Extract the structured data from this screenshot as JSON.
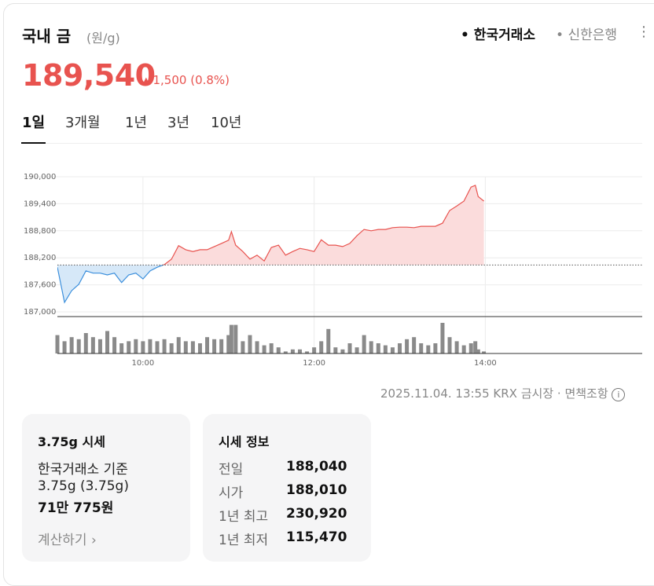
{
  "header": {
    "title": "국내 금",
    "unit": "(원/g)",
    "sources": [
      "한국거래소",
      "신한은행"
    ]
  },
  "price": {
    "value": "189,540",
    "change": "1,500",
    "change_pct": "(0.8%)"
  },
  "tabs": [
    "1일",
    "3개월",
    "1년",
    "3년",
    "10년"
  ],
  "chart_data": {
    "type": "line",
    "x": [
      "09:00",
      "09:05",
      "09:10",
      "09:15",
      "09:20",
      "09:25",
      "09:30",
      "09:35",
      "09:40",
      "09:45",
      "09:50",
      "09:55",
      "10:00",
      "10:05",
      "10:10",
      "10:15",
      "10:20",
      "10:25",
      "10:30",
      "10:35",
      "10:40",
      "10:45",
      "10:50",
      "10:55",
      "11:00",
      "11:02",
      "11:05",
      "11:10",
      "11:15",
      "11:20",
      "11:25",
      "11:30",
      "11:35",
      "11:40",
      "11:45",
      "11:50",
      "11:55",
      "12:00",
      "12:05",
      "12:10",
      "12:15",
      "12:20",
      "12:25",
      "12:30",
      "12:35",
      "12:40",
      "12:45",
      "12:50",
      "12:55",
      "13:00",
      "13:05",
      "13:10",
      "13:15",
      "13:20",
      "13:25",
      "13:30",
      "13:35",
      "13:40",
      "13:45",
      "13:50",
      "13:53",
      "13:55",
      "13:59"
    ],
    "values": [
      187990,
      187210,
      187470,
      187610,
      187910,
      187860,
      187860,
      187820,
      187860,
      187650,
      187820,
      187860,
      187730,
      187910,
      187990,
      188050,
      188170,
      188470,
      188380,
      188340,
      188380,
      188380,
      188450,
      188520,
      188590,
      188780,
      188480,
      188340,
      188170,
      188260,
      188130,
      188430,
      188480,
      188260,
      188340,
      188410,
      188380,
      188340,
      188600,
      188480,
      188480,
      188450,
      188520,
      188690,
      188830,
      188800,
      188830,
      188830,
      188870,
      188880,
      188880,
      188870,
      188900,
      188900,
      188900,
      188970,
      189250,
      189350,
      189460,
      189770,
      189810,
      189560,
      189460
    ],
    "volumes": [
      18,
      12,
      16,
      14,
      20,
      16,
      14,
      22,
      16,
      10,
      12,
      14,
      12,
      14,
      12,
      14,
      10,
      16,
      12,
      12,
      10,
      16,
      14,
      14,
      18,
      28,
      28,
      12,
      18,
      12,
      8,
      10,
      6,
      2,
      4,
      4,
      2,
      6,
      12,
      24,
      6,
      4,
      10,
      6,
      18,
      12,
      10,
      8,
      6,
      10,
      14,
      16,
      10,
      8,
      10,
      30,
      16,
      12,
      8,
      10,
      12,
      4,
      2
    ],
    "baseline": 188040,
    "ylim": [
      187000,
      190000
    ],
    "yticks": [
      {
        "value": 187000,
        "label": "187,000"
      },
      {
        "value": 187600,
        "label": "187,600"
      },
      {
        "value": 188200,
        "label": "188,200"
      },
      {
        "value": 188800,
        "label": "188,800"
      },
      {
        "value": 189400,
        "label": "189,400"
      },
      {
        "value": 190000,
        "label": "190,000"
      }
    ],
    "xlim": [
      "09:00",
      "15:50"
    ],
    "xticks": [
      "10:00",
      "12:00",
      "14:00"
    ],
    "grid": true,
    "up_color": "#e8534f",
    "down_color": "#3b8fdc",
    "volume_color": "#8a8a8a"
  },
  "timestamp": "2025.11.04. 13:55 KRX 금시장",
  "disclaimer": "면책조항",
  "cards": [
    {
      "title": "3.75g 시세",
      "lines": [
        "한국거래소 기준",
        "3.75g (3.75g)"
      ],
      "amount": "71만 775원",
      "link": "계산하기"
    },
    {
      "title": "시세 정보",
      "rows": [
        [
          "전일",
          "188,040"
        ],
        [
          "시가",
          "188,010"
        ],
        [
          "1년 최고",
          "230,920"
        ],
        [
          "1년 최저",
          "115,470"
        ]
      ]
    }
  ]
}
